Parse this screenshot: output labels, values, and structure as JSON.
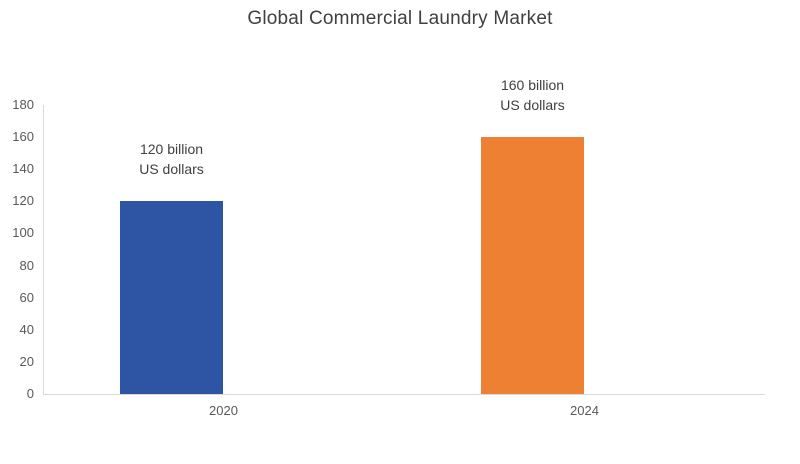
{
  "title": "Global Commercial Laundry Market",
  "chart_data": {
    "type": "bar",
    "title": "Global Commercial Laundry Market",
    "categories": [
      "2020",
      "2024"
    ],
    "values": [
      120,
      160
    ],
    "data_labels": [
      "120 billion\nUS dollars",
      "160 billion\nUS dollars"
    ],
    "bar_colors": [
      "#2E55A4",
      "#ED8032"
    ],
    "xlabel": "",
    "ylabel": "",
    "ylim": [
      0,
      180
    ],
    "yticks": [
      0,
      20,
      40,
      60,
      80,
      100,
      120,
      140,
      160,
      180
    ],
    "grid": false,
    "legend": "none",
    "axis_line_color": "#D9D9D9",
    "tick_label_color": "#595959",
    "title_color": "#404040",
    "data_label_color": "#404040"
  }
}
